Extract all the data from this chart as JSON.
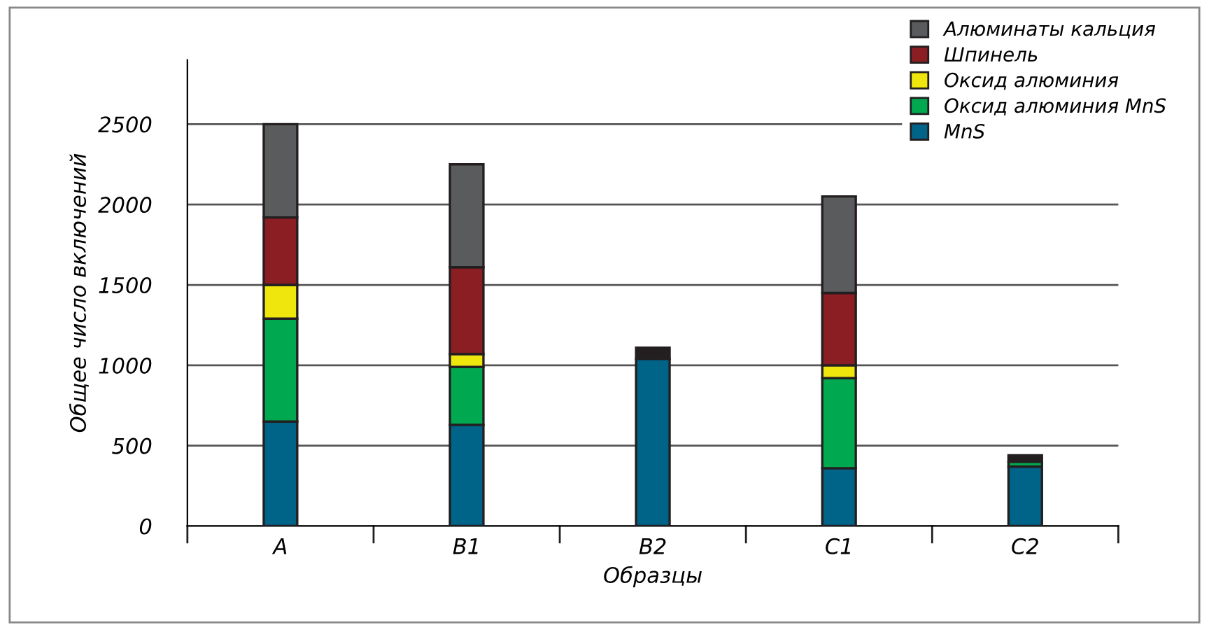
{
  "chart_data": {
    "type": "bar",
    "stacked": true,
    "xlabel": "Образцы",
    "ylabel": "Общее число включений",
    "categories": [
      "A",
      "B1",
      "B2",
      "C1",
      "C2"
    ],
    "series": [
      {
        "name": "MnS",
        "color": "#006388",
        "values": [
          650,
          630,
          1040,
          360,
          370
        ]
      },
      {
        "name": "Оксид алюминия MnS",
        "color": "#00a94f",
        "values": [
          640,
          360,
          null,
          560,
          30
        ]
      },
      {
        "name": "Оксид алюминия",
        "color": "#eee60c",
        "values": [
          210,
          80,
          null,
          80,
          null
        ]
      },
      {
        "name": "Шпинель",
        "color": "#8b1e22",
        "values": [
          420,
          540,
          null,
          450,
          null
        ]
      },
      {
        "name": "Алюминаты кальция",
        "color": "#5a5b5d",
        "colors": [
          "#5a5b5d",
          "#5a5b5d",
          "#231f20",
          "#5a5b5d",
          "#231f20"
        ],
        "values": [
          580,
          640,
          70,
          600,
          40
        ]
      }
    ],
    "ylim": [
      0,
      2900
    ],
    "yticks": [
      0,
      500,
      1000,
      1500,
      2000,
      2500
    ],
    "grid": "y",
    "legend": "top right"
  }
}
